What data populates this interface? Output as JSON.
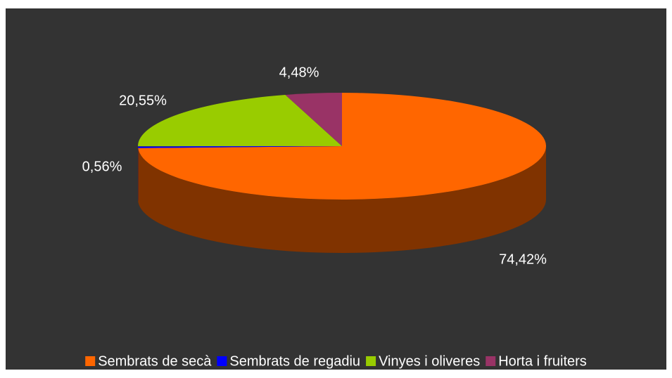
{
  "chart_data": {
    "type": "pie",
    "categories": [
      "Sembrats de secà",
      "Sembrats de regadiu",
      "Vinyes i oliveres",
      "Horta i fruiters"
    ],
    "values": [
      74.42,
      0.56,
      20.55,
      4.48
    ],
    "value_labels": [
      "74,42%",
      "0,56%",
      "20,55%",
      "4,48%"
    ],
    "colors": [
      "#ff6600",
      "#0000ff",
      "#99cc00",
      "#993366"
    ],
    "legend": "bottom"
  }
}
